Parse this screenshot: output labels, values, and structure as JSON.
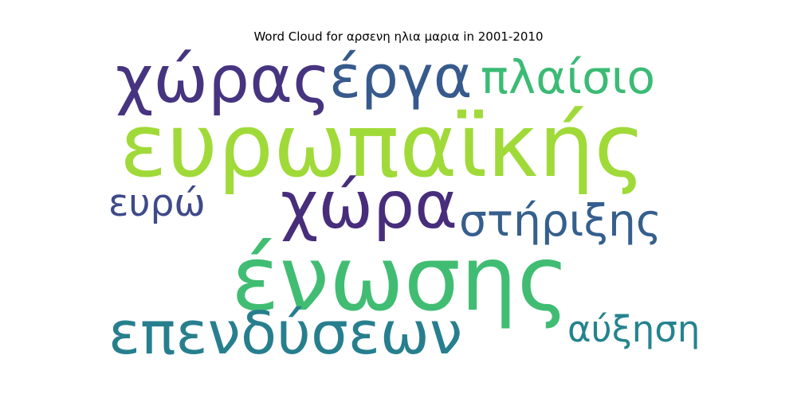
{
  "chart_data": {
    "type": "wordcloud",
    "title": "Word Cloud for αρσενη ηλια μαρια in 2001-2010",
    "words": [
      {
        "text": "ευρωπαϊκής",
        "weight": 1.0,
        "color": "#a0da39"
      },
      {
        "text": "ένωσης",
        "weight": 0.95,
        "color": "#40bd72"
      },
      {
        "text": "χώρας",
        "weight": 0.7,
        "color": "#463480"
      },
      {
        "text": "χώρα",
        "weight": 0.7,
        "color": "#472d7b"
      },
      {
        "text": "επενδύσεων",
        "weight": 0.65,
        "color": "#277f8e"
      },
      {
        "text": "έργα",
        "weight": 0.6,
        "color": "#375a8c"
      },
      {
        "text": "πλαίσιο",
        "weight": 0.5,
        "color": "#3bbb75"
      },
      {
        "text": "στήριξης",
        "weight": 0.45,
        "color": "#355f8d"
      },
      {
        "text": "ευρώ",
        "weight": 0.4,
        "color": "#3e4a89"
      },
      {
        "text": "αύξηση",
        "weight": 0.35,
        "color": "#25838e"
      }
    ]
  }
}
